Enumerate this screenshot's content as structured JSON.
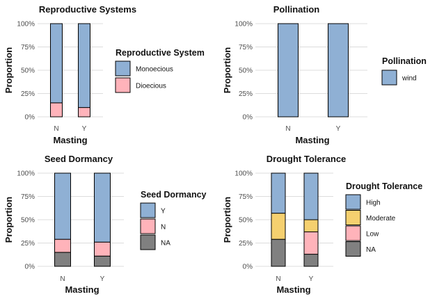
{
  "chart_data": [
    {
      "type": "bar",
      "stacked": true,
      "title": "Reproductive Systems",
      "xlabel": "Masting",
      "ylabel": "Proportion",
      "categories": [
        "N",
        "Y"
      ],
      "y_ticks": [
        "0%",
        "25%",
        "50%",
        "75%",
        "100%"
      ],
      "ylim": [
        0,
        1
      ],
      "legend_title": "Reproductive System",
      "legend_position": "right",
      "series": [
        {
          "name": "Dioecious",
          "values": [
            0.15,
            0.1
          ],
          "color": "#ffb3ba"
        },
        {
          "name": "Monoecious",
          "values": [
            0.85,
            0.9
          ],
          "color": "#8fb0d4"
        }
      ]
    },
    {
      "type": "bar",
      "stacked": true,
      "title": "Pollination",
      "xlabel": "Masting",
      "ylabel": "Proportion",
      "categories": [
        "N",
        "Y"
      ],
      "y_ticks": [
        "0%",
        "25%",
        "50%",
        "75%",
        "100%"
      ],
      "ylim": [
        0,
        1
      ],
      "legend_title": "Pollination",
      "legend_position": "right",
      "series": [
        {
          "name": "wind",
          "values": [
            1.0,
            1.0
          ],
          "color": "#8fb0d4"
        }
      ]
    },
    {
      "type": "bar",
      "stacked": true,
      "title": "Seed Dormancy",
      "xlabel": "Masting",
      "ylabel": "Proportion",
      "categories": [
        "N",
        "Y"
      ],
      "y_ticks": [
        "0%",
        "25%",
        "50%",
        "75%",
        "100%"
      ],
      "ylim": [
        0,
        1
      ],
      "legend_title": "Seed Dormancy",
      "legend_position": "right",
      "series": [
        {
          "name": "NA",
          "values": [
            0.15,
            0.11
          ],
          "color": "#808080"
        },
        {
          "name": "N",
          "values": [
            0.14,
            0.15
          ],
          "color": "#ffb3ba"
        },
        {
          "name": "Y",
          "values": [
            0.71,
            0.74
          ],
          "color": "#8fb0d4"
        }
      ]
    },
    {
      "type": "bar",
      "stacked": true,
      "title": "Drought Tolerance",
      "xlabel": "Masting",
      "ylabel": "Proportion",
      "categories": [
        "N",
        "Y"
      ],
      "y_ticks": [
        "0%",
        "25%",
        "50%",
        "75%",
        "100%"
      ],
      "ylim": [
        0,
        1
      ],
      "legend_title": "Drought Tolerance",
      "legend_position": "right",
      "series": [
        {
          "name": "NA",
          "values": [
            0.29,
            0.13
          ],
          "color": "#808080"
        },
        {
          "name": "Low",
          "values": [
            0.0,
            0.24
          ],
          "color": "#ffb3ba"
        },
        {
          "name": "Moderate",
          "values": [
            0.28,
            0.13
          ],
          "color": "#f5d06f"
        },
        {
          "name": "High",
          "values": [
            0.43,
            0.5
          ],
          "color": "#8fb0d4"
        }
      ]
    }
  ]
}
